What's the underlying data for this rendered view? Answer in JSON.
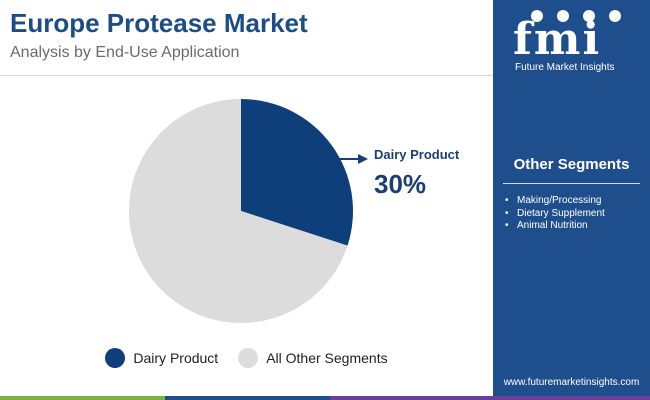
{
  "header": {
    "title": "Europe Protease Market",
    "subtitle": "Analysis by End-Use Application"
  },
  "colors": {
    "primary": "#1b4e86",
    "sidebar": "#1f4e8c",
    "dairy": "#0e3f7a",
    "other": "#dcdcdc",
    "bar_green": "#7bb342",
    "bar_blue": "#1f4e8c",
    "bar_purple": "#6b3f99"
  },
  "chart_data": {
    "type": "pie",
    "title": "",
    "slices": [
      {
        "label": "Dairy Product",
        "value": 30
      },
      {
        "label": "All Other Segments",
        "value": 70
      }
    ],
    "callout": {
      "label": "Dairy Product",
      "value": "30%"
    },
    "legend_position": "bottom"
  },
  "legend": [
    {
      "label": "Dairy Product",
      "color_key": "dairy"
    },
    {
      "label": "All Other Segments",
      "color_key": "other"
    }
  ],
  "sidebar": {
    "logo_letters": "fmi",
    "logo_tagline": "Future Market Insights",
    "segments_title": "Other Segments",
    "segments": [
      "Making/Processing",
      "Dietary Supplement",
      "Animal Nutrition"
    ],
    "website": "www.futuremarketinsights.com"
  }
}
